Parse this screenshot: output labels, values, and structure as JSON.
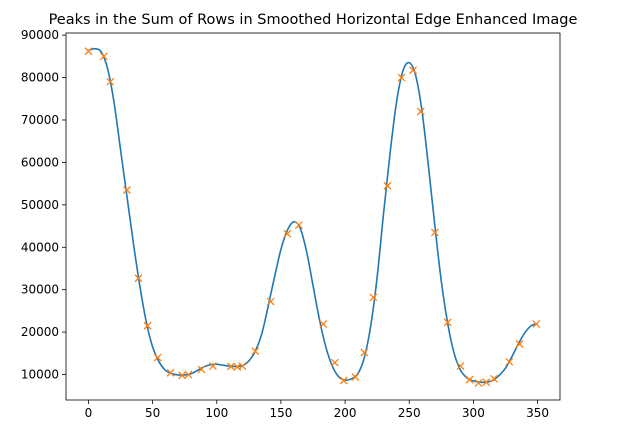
{
  "chart_data": {
    "type": "line",
    "title": "Peaks in the Sum of Rows in Smoothed Horizontal Edge Enhanced Image",
    "xlabel": "",
    "ylabel": "",
    "xlim": [
      -17.5,
      367.5
    ],
    "ylim": [
      4000,
      90500
    ],
    "grid": false,
    "x_ticks": [
      0,
      50,
      100,
      150,
      200,
      250,
      300,
      350
    ],
    "y_ticks": [
      10000,
      20000,
      30000,
      40000,
      50000,
      60000,
      70000,
      80000,
      90000
    ],
    "colors": {
      "line": "#1f77b4",
      "markers": "#ff7f0e"
    },
    "series": [
      {
        "type": "line",
        "points": [
          [
            0,
            86400
          ],
          [
            5,
            86800
          ],
          [
            10,
            86000
          ],
          [
            15,
            82000
          ],
          [
            20,
            74000
          ],
          [
            25,
            63000
          ],
          [
            30,
            52000
          ],
          [
            35,
            41000
          ],
          [
            40,
            31000
          ],
          [
            45,
            22500
          ],
          [
            50,
            16500
          ],
          [
            55,
            13000
          ],
          [
            60,
            11000
          ],
          [
            65,
            10200
          ],
          [
            70,
            9900
          ],
          [
            75,
            9900
          ],
          [
            80,
            10200
          ],
          [
            85,
            11000
          ],
          [
            90,
            11800
          ],
          [
            95,
            12300
          ],
          [
            100,
            12400
          ],
          [
            105,
            12200
          ],
          [
            110,
            12000
          ],
          [
            115,
            11900
          ],
          [
            120,
            12100
          ],
          [
            125,
            13200
          ],
          [
            130,
            15500
          ],
          [
            135,
            19500
          ],
          [
            140,
            26000
          ],
          [
            145,
            33000
          ],
          [
            150,
            39500
          ],
          [
            155,
            44000
          ],
          [
            160,
            46000
          ],
          [
            165,
            44500
          ],
          [
            170,
            39000
          ],
          [
            175,
            31000
          ],
          [
            180,
            23000
          ],
          [
            185,
            16500
          ],
          [
            190,
            12000
          ],
          [
            195,
            9500
          ],
          [
            200,
            8700
          ],
          [
            205,
            9000
          ],
          [
            210,
            10200
          ],
          [
            215,
            14000
          ],
          [
            220,
            21500
          ],
          [
            225,
            33000
          ],
          [
            230,
            48000
          ],
          [
            235,
            62000
          ],
          [
            240,
            74000
          ],
          [
            245,
            81500
          ],
          [
            250,
            83500
          ],
          [
            255,
            80500
          ],
          [
            260,
            72000
          ],
          [
            265,
            59000
          ],
          [
            270,
            45000
          ],
          [
            275,
            32000
          ],
          [
            280,
            22000
          ],
          [
            285,
            15000
          ],
          [
            290,
            11000
          ],
          [
            295,
            9200
          ],
          [
            300,
            8500
          ],
          [
            305,
            8200
          ],
          [
            310,
            8200
          ],
          [
            315,
            8600
          ],
          [
            320,
            9800
          ],
          [
            325,
            11500
          ],
          [
            330,
            14200
          ],
          [
            335,
            17200
          ],
          [
            340,
            19800
          ],
          [
            345,
            21500
          ],
          [
            350,
            22000
          ]
        ]
      },
      {
        "type": "scatter",
        "marker": "x",
        "points": [
          [
            0,
            86200
          ],
          [
            12,
            85000
          ],
          [
            17,
            79000
          ],
          [
            30,
            53500
          ],
          [
            39,
            32700
          ],
          [
            46,
            21500
          ],
          [
            54,
            14000
          ],
          [
            64,
            10400
          ],
          [
            73,
            9800
          ],
          [
            78,
            10000
          ],
          [
            88,
            11200
          ],
          [
            97,
            12000
          ],
          [
            111,
            11900
          ],
          [
            116,
            11800
          ],
          [
            120,
            12000
          ],
          [
            130,
            15500
          ],
          [
            142,
            27200
          ],
          [
            155,
            43200
          ],
          [
            164,
            45200
          ],
          [
            183,
            21900
          ],
          [
            192,
            12800
          ],
          [
            199,
            8600
          ],
          [
            208,
            9400
          ],
          [
            215,
            15200
          ],
          [
            222,
            28200
          ],
          [
            233,
            54500
          ],
          [
            244,
            80000
          ],
          [
            253,
            81700
          ],
          [
            259,
            72000
          ],
          [
            270,
            43500
          ],
          [
            280,
            22300
          ],
          [
            290,
            12000
          ],
          [
            297,
            8800
          ],
          [
            304,
            8000
          ],
          [
            310,
            8200
          ],
          [
            316,
            9000
          ],
          [
            328,
            13000
          ],
          [
            336,
            17200
          ],
          [
            349,
            21900
          ]
        ]
      }
    ]
  }
}
